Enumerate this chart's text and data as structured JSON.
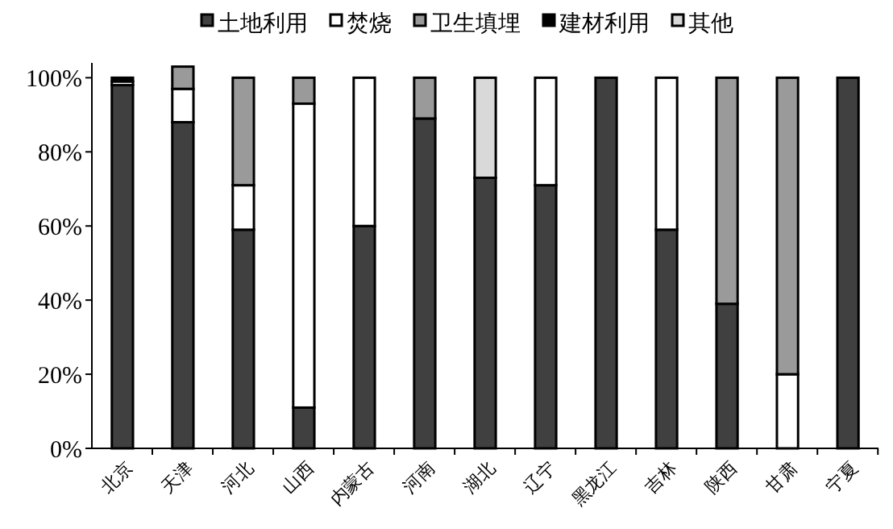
{
  "chart_data": {
    "type": "bar",
    "stacked": true,
    "categories": [
      "北京",
      "天津",
      "河北",
      "山西",
      "内蒙古",
      "河南",
      "湖北",
      "辽宁",
      "黑龙江",
      "吉林",
      "陕西",
      "甘肃",
      "宁夏"
    ],
    "series": [
      {
        "name": "土地利用",
        "color": "#404040",
        "values": [
          98,
          88,
          59,
          11,
          60,
          89,
          73,
          71,
          100,
          59,
          39,
          0,
          100
        ]
      },
      {
        "name": "焚烧",
        "color": "#ffffff",
        "values": [
          1,
          9,
          12,
          82,
          40,
          0,
          0,
          29,
          0,
          41,
          0,
          20,
          0
        ]
      },
      {
        "name": "卫生填埋",
        "color": "#9a9a9a",
        "values": [
          0,
          6,
          29,
          7,
          0,
          11,
          0,
          0,
          0,
          0,
          61,
          80,
          0
        ]
      },
      {
        "name": "建材利用",
        "color": "#000000",
        "values": [
          1,
          0,
          0,
          0,
          0,
          0,
          0,
          0,
          0,
          0,
          0,
          0,
          0
        ]
      },
      {
        "name": "其他",
        "color": "#d9d9d9",
        "values": [
          0,
          0,
          0,
          0,
          0,
          0,
          27,
          0,
          0,
          0,
          0,
          0,
          0
        ]
      }
    ],
    "ylim": [
      0,
      104
    ],
    "yticks": [
      {
        "value": 0,
        "label": "0%"
      },
      {
        "value": 20,
        "label": "20%"
      },
      {
        "value": 40,
        "label": "40%"
      },
      {
        "value": 60,
        "label": "60%"
      },
      {
        "value": 80,
        "label": "80%"
      },
      {
        "value": 100,
        "label": "100%"
      }
    ],
    "grid": false,
    "legend": "top"
  }
}
